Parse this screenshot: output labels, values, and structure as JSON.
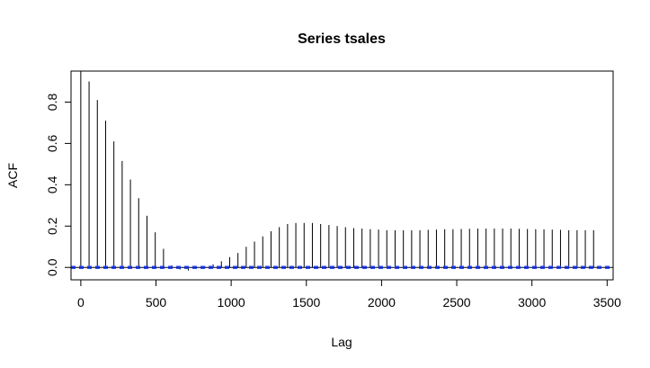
{
  "chart_data": {
    "type": "bar",
    "title": "Series tsales",
    "xlabel": "Lag",
    "ylabel": "ACF",
    "xlim": [
      -65,
      3540
    ],
    "ylim": [
      -0.06,
      0.95
    ],
    "x_ticks": [
      0,
      500,
      1000,
      1500,
      2000,
      2500,
      3000,
      3500
    ],
    "x_tick_labels": [
      "0",
      "500",
      "1000",
      "1500",
      "2000",
      "2500",
      "3000",
      "3500"
    ],
    "y_ticks": [
      0.0,
      0.2,
      0.4,
      0.6,
      0.8
    ],
    "y_tick_labels": [
      "0.0",
      "0.2",
      "0.4",
      "0.6",
      "0.8"
    ],
    "grid": false,
    "colors": {
      "bars": "#000000",
      "confidence_bounds": "#1f3fff"
    },
    "confidence_bounds": [
      -0.004,
      0.004
    ],
    "lags": [
      0,
      55,
      110,
      165,
      220,
      275,
      330,
      385,
      440,
      495,
      550,
      605,
      660,
      715,
      770,
      825,
      880,
      935,
      990,
      1045,
      1100,
      1155,
      1210,
      1265,
      1320,
      1375,
      1430,
      1485,
      1540,
      1595,
      1650,
      1705,
      1760,
      1815,
      1870,
      1925,
      1980,
      2035,
      2090,
      2145,
      2200,
      2255,
      2310,
      2365,
      2420,
      2475,
      2530,
      2585,
      2640,
      2695,
      2750,
      2805,
      2860,
      2915,
      2970,
      3025,
      3080,
      3135,
      3190,
      3245,
      3300,
      3355,
      3410
    ],
    "acf": [
      1.0,
      0.9,
      0.81,
      0.71,
      0.61,
      0.515,
      0.425,
      0.335,
      0.25,
      0.17,
      0.09,
      0.01,
      -0.01,
      -0.015,
      -0.005,
      0.005,
      0.015,
      0.03,
      0.05,
      0.07,
      0.1,
      0.125,
      0.15,
      0.175,
      0.195,
      0.21,
      0.215,
      0.215,
      0.215,
      0.21,
      0.205,
      0.2,
      0.195,
      0.19,
      0.188,
      0.185,
      0.183,
      0.18,
      0.18,
      0.18,
      0.18,
      0.18,
      0.182,
      0.183,
      0.185,
      0.185,
      0.186,
      0.187,
      0.188,
      0.188,
      0.188,
      0.188,
      0.188,
      0.187,
      0.186,
      0.185,
      0.184,
      0.183,
      0.182,
      0.18,
      0.18,
      0.18,
      0.18
    ]
  }
}
